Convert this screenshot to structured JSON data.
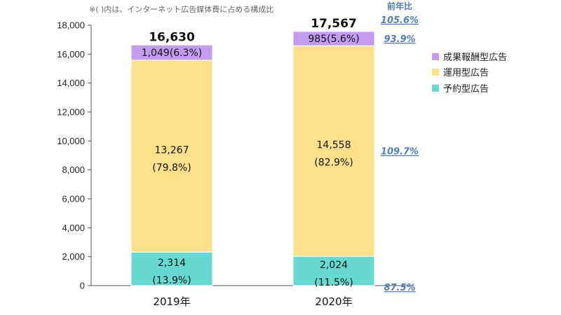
{
  "note": "※( )内は、インターネット広告媒体費に占める構成比",
  "yoy_header": "前年比",
  "chart_data": {
    "type": "bar",
    "stacked": true,
    "categories": [
      "2019年",
      "2020年"
    ],
    "ylim": [
      0,
      18000
    ],
    "yticks": [
      0,
      2000,
      4000,
      6000,
      8000,
      10000,
      12000,
      14000,
      16000,
      18000
    ],
    "ytick_labels": [
      "0",
      "2,000",
      "4,000",
      "6,000",
      "8,000",
      "10,000",
      "12,000",
      "14,000",
      "16,000",
      "18,000"
    ],
    "series": [
      {
        "name": "予約型広告",
        "color": "#66d9d3",
        "values": [
          2314,
          2024
        ],
        "labels": [
          "2,314",
          "2,024"
        ],
        "shares": [
          "(13.9%)",
          "(11.5%)"
        ],
        "yoy": "87.5%"
      },
      {
        "name": "運用型広告",
        "color": "#fde08a",
        "values": [
          13267,
          14558
        ],
        "labels": [
          "13,267",
          "14,558"
        ],
        "shares": [
          "(79.8%)",
          "(82.9%)"
        ],
        "yoy": "109.7%"
      },
      {
        "name": "成果報酬型広告",
        "color": "#c39cf0",
        "values": [
          1049,
          985
        ],
        "labels": [
          "1,049(6.3%)",
          "985(5.6%)"
        ],
        "yoy": "93.9%"
      }
    ],
    "totals": [
      "16,630",
      "17,567"
    ],
    "total_yoy": "105.6%",
    "legend": {
      "position": "right",
      "order": [
        "成果報酬型広告",
        "運用型広告",
        "予約型広告"
      ]
    },
    "grid": false
  }
}
